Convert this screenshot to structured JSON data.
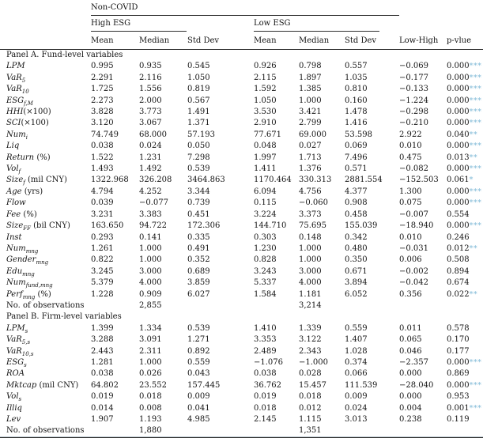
{
  "style": {
    "star_color": "#7db8d6",
    "rule_color": "#2e2e2e"
  },
  "header": {
    "group_top": "Non-COVID",
    "group_high": "High ESG",
    "group_low": "Low ESG",
    "stat_cols": [
      "Mean",
      "Median",
      "Std Dev"
    ],
    "diff_col": "Low-High",
    "pvalue_col": "p-vlue"
  },
  "table": {
    "panels": [
      {
        "title": "Panel A. Fund-level variables",
        "rows": [
          {
            "label": {
              "b": "LPM",
              "s": "",
              "r": ""
            },
            "high": [
              "0.995",
              "0.935",
              "0.545"
            ],
            "low": [
              "0.926",
              "0.798",
              "0.557"
            ],
            "diff": "−0.069",
            "p": "0.000",
            "stars": "***"
          },
          {
            "label": {
              "b": "VaR",
              "s": "5",
              "r": ""
            },
            "high": [
              "2.291",
              "2.116",
              "1.050"
            ],
            "low": [
              "2.115",
              "1.897",
              "1.035"
            ],
            "diff": "−0.177",
            "p": "0.000",
            "stars": "***"
          },
          {
            "label": {
              "b": "VaR",
              "s": "10",
              "r": ""
            },
            "high": [
              "1.725",
              "1.556",
              "0.819"
            ],
            "low": [
              "1.592",
              "1.385",
              "0.810"
            ],
            "diff": "−0.133",
            "p": "0.000",
            "stars": "***"
          },
          {
            "label": {
              "b": "ESG",
              "s": "f,M",
              "r": ""
            },
            "high": [
              "2.273",
              "2.000",
              "0.567"
            ],
            "low": [
              "1.050",
              "1.000",
              "0.160"
            ],
            "diff": "−1.224",
            "p": "0.000",
            "stars": "***"
          },
          {
            "label": {
              "b": "HHI",
              "s": "",
              "r": "(×100)"
            },
            "high": [
              "3.828",
              "3.773",
              "1.491"
            ],
            "low": [
              "3.530",
              "3.421",
              "1.478"
            ],
            "diff": "−0.298",
            "p": "0.000",
            "stars": "***"
          },
          {
            "label": {
              "b": "SCI",
              "s": "",
              "r": "(×100)"
            },
            "high": [
              "3.120",
              "3.067",
              "1.371"
            ],
            "low": [
              "2.910",
              "2.799",
              "1.416"
            ],
            "diff": "−0.210",
            "p": "0.000",
            "stars": "***"
          },
          {
            "label": {
              "b": "Num",
              "s": "i",
              "r": ""
            },
            "high": [
              "74.749",
              "68.000",
              "57.193"
            ],
            "low": [
              "77.671",
              "69.000",
              "53.598"
            ],
            "diff": "2.922",
            "p": "0.040",
            "stars": "**"
          },
          {
            "label": {
              "b": "Liq",
              "s": "",
              "r": ""
            },
            "high": [
              "0.038",
              "0.024",
              "0.050"
            ],
            "low": [
              "0.048",
              "0.027",
              "0.069"
            ],
            "diff": "0.010",
            "p": "0.000",
            "stars": "***"
          },
          {
            "label": {
              "b": "Return",
              "s": "",
              "r": " (%)"
            },
            "high": [
              "1.522",
              "1.231",
              "7.298"
            ],
            "low": [
              "1.997",
              "1.713",
              "7.496"
            ],
            "diff": "0.475",
            "p": "0.013",
            "stars": "**"
          },
          {
            "label": {
              "b": "Vol",
              "s": "f",
              "r": ""
            },
            "high": [
              "1.493",
              "1.492",
              "0.539"
            ],
            "low": [
              "1.411",
              "1.376",
              "0.571"
            ],
            "diff": "−0.082",
            "p": "0.000",
            "stars": "***"
          },
          {
            "label": {
              "b": "Size",
              "s": "f",
              "r": " (mil CNY)"
            },
            "high": [
              "1322.968",
              "326.208",
              "3464.863"
            ],
            "low": [
              "1170.464",
              "330.313",
              "2881.554"
            ],
            "diff": "−152.503",
            "p": "0.061",
            "stars": "*"
          },
          {
            "label": {
              "b": "Age",
              "s": "",
              "r": " (yrs)"
            },
            "high": [
              "4.794",
              "4.252",
              "3.344"
            ],
            "low": [
              "6.094",
              "4.756",
              "4.377"
            ],
            "diff": "1.300",
            "p": "0.000",
            "stars": "***"
          },
          {
            "label": {
              "b": "Flow",
              "s": "",
              "r": ""
            },
            "high": [
              "0.039",
              "−0.077",
              "0.739"
            ],
            "low": [
              "0.115",
              "−0.060",
              "0.908"
            ],
            "diff": "0.075",
            "p": "0.000",
            "stars": "***"
          },
          {
            "label": {
              "b": "Fee",
              "s": "",
              "r": " (%)"
            },
            "high": [
              "3.231",
              "3.383",
              "0.451"
            ],
            "low": [
              "3.224",
              "3.373",
              "0.458"
            ],
            "diff": "−0.007",
            "p": "0.554",
            "stars": ""
          },
          {
            "label": {
              "b": "Size",
              "s": "FF",
              "r": " (bil CNY)"
            },
            "high": [
              "163.650",
              "94.722",
              "172.306"
            ],
            "low": [
              "144.710",
              "75.695",
              "155.039"
            ],
            "diff": "−18.940",
            "p": "0.000",
            "stars": "***"
          },
          {
            "label": {
              "b": "Inst",
              "s": "",
              "r": ""
            },
            "high": [
              "0.293",
              "0.141",
              "0.335"
            ],
            "low": [
              "0.303",
              "0.148",
              "0.342"
            ],
            "diff": "0.010",
            "p": "0.246",
            "stars": ""
          },
          {
            "label": {
              "b": "Num",
              "s": "mng",
              "r": ""
            },
            "high": [
              "1.261",
              "1.000",
              "0.491"
            ],
            "low": [
              "1.230",
              "1.000",
              "0.480"
            ],
            "diff": "−0.031",
            "p": "0.012",
            "stars": "**"
          },
          {
            "label": {
              "b": "Gender",
              "s": "mng",
              "r": ""
            },
            "high": [
              "0.822",
              "1.000",
              "0.352"
            ],
            "low": [
              "0.828",
              "1.000",
              "0.350"
            ],
            "diff": "0.006",
            "p": "0.508",
            "stars": ""
          },
          {
            "label": {
              "b": "Edu",
              "s": "mng",
              "r": ""
            },
            "high": [
              "3.245",
              "3.000",
              "0.689"
            ],
            "low": [
              "3.243",
              "3.000",
              "0.671"
            ],
            "diff": "−0.002",
            "p": "0.894",
            "stars": ""
          },
          {
            "label": {
              "b": "Num",
              "s": "fund,mng",
              "r": ""
            },
            "high": [
              "5.379",
              "4.000",
              "3.859"
            ],
            "low": [
              "5.337",
              "4.000",
              "3.894"
            ],
            "diff": "−0.042",
            "p": "0.674",
            "stars": ""
          },
          {
            "label": {
              "b": "Perf",
              "s": "mng",
              "r": " (%)"
            },
            "high": [
              "1.228",
              "0.909",
              "6.027"
            ],
            "low": [
              "1.584",
              "1.181",
              "6.052"
            ],
            "diff": "0.356",
            "p": "0.022",
            "stars": "**"
          }
        ],
        "obs": {
          "label": "No. of observations",
          "high": "2,855",
          "low": "3,214"
        }
      },
      {
        "title": "Panel B. Firm-level variables",
        "rows": [
          {
            "label": {
              "b": "LPM",
              "s": "s",
              "r": ""
            },
            "high": [
              "1.399",
              "1.334",
              "0.539"
            ],
            "low": [
              "1.410",
              "1.339",
              "0.559"
            ],
            "diff": "0.011",
            "p": "0.578",
            "stars": ""
          },
          {
            "label": {
              "b": "VaR",
              "s": "5,s",
              "r": ""
            },
            "high": [
              "3.288",
              "3.091",
              "1.271"
            ],
            "low": [
              "3.353",
              "3.122",
              "1.407"
            ],
            "diff": "0.065",
            "p": "0.170",
            "stars": ""
          },
          {
            "label": {
              "b": "VaR",
              "s": "10,s",
              "r": ""
            },
            "high": [
              "2.443",
              "2.311",
              "0.892"
            ],
            "low": [
              "2.489",
              "2.343",
              "1.028"
            ],
            "diff": "0.046",
            "p": "0.177",
            "stars": ""
          },
          {
            "label": {
              "b": "ESG",
              "s": "s",
              "r": ""
            },
            "high": [
              "1.281",
              "1.000",
              "0.559"
            ],
            "low": [
              "−1.076",
              "−1.000",
              "0.374"
            ],
            "diff": "−2.357",
            "p": "0.000",
            "stars": "***"
          },
          {
            "label": {
              "b": "ROA",
              "s": "",
              "r": ""
            },
            "high": [
              "0.038",
              "0.026",
              "0.043"
            ],
            "low": [
              "0.038",
              "0.028",
              "0.066"
            ],
            "diff": "0.000",
            "p": "0.869",
            "stars": ""
          },
          {
            "label": {
              "b": "Mktcap",
              "s": "",
              "r": " (mil CNY)"
            },
            "high": [
              "64.802",
              "23.552",
              "157.445"
            ],
            "low": [
              "36.762",
              "15.457",
              "111.539"
            ],
            "diff": "−28.040",
            "p": "0.000",
            "stars": "***"
          },
          {
            "label": {
              "b": "Vol",
              "s": "s",
              "r": ""
            },
            "high": [
              "0.019",
              "0.018",
              "0.009"
            ],
            "low": [
              "0.019",
              "0.018",
              "0.009"
            ],
            "diff": "0.000",
            "p": "0.953",
            "stars": ""
          },
          {
            "label": {
              "b": "Illiq",
              "s": "",
              "r": ""
            },
            "high": [
              "0.014",
              "0.008",
              "0.041"
            ],
            "low": [
              "0.018",
              "0.012",
              "0.024"
            ],
            "diff": "0.004",
            "p": "0.001",
            "stars": "***"
          },
          {
            "label": {
              "b": "Lev",
              "s": "",
              "r": ""
            },
            "high": [
              "1.907",
              "1.193",
              "4.985"
            ],
            "low": [
              "2.145",
              "1.115",
              "3.013"
            ],
            "diff": "0.238",
            "p": "0.119",
            "stars": ""
          }
        ],
        "obs": {
          "label": "No. of observations",
          "high": "1,880",
          "low": "1,351"
        }
      }
    ]
  }
}
